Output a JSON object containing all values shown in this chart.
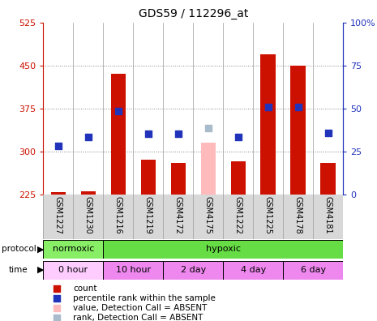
{
  "title": "GDS59 / 112296_at",
  "samples": [
    "GSM1227",
    "GSM1230",
    "GSM1216",
    "GSM1219",
    "GSM4172",
    "GSM4175",
    "GSM1222",
    "GSM1225",
    "GSM4178",
    "GSM4181"
  ],
  "count_values": [
    228,
    230,
    435,
    285,
    280,
    null,
    283,
    470,
    450,
    280
  ],
  "count_absent": [
    null,
    null,
    null,
    null,
    null,
    315,
    null,
    null,
    null,
    null
  ],
  "rank_values": [
    310,
    325,
    370,
    330,
    330,
    null,
    325,
    378,
    378,
    332
  ],
  "rank_absent": [
    null,
    null,
    null,
    null,
    null,
    340,
    null,
    null,
    null,
    null
  ],
  "ylim_left": [
    225,
    525
  ],
  "ylim_right": [
    0,
    100
  ],
  "left_ticks": [
    225,
    300,
    375,
    450,
    525
  ],
  "right_ticks": [
    0,
    25,
    50,
    75,
    100
  ],
  "right_tick_labels": [
    "0",
    "25",
    "50",
    "75",
    "100%"
  ],
  "bar_color": "#cc1100",
  "bar_absent_color": "#ffbbbb",
  "dot_color": "#2233bb",
  "dot_absent_color": "#aabbcc",
  "bar_width": 0.5,
  "dot_size": 35,
  "protocol_data": [
    {
      "label": "normoxic",
      "start": 0,
      "end": 2,
      "color": "#88ee66"
    },
    {
      "label": "hypoxic",
      "start": 2,
      "end": 10,
      "color": "#66dd44"
    }
  ],
  "time_data": [
    {
      "label": "0 hour",
      "start": 0,
      "end": 2,
      "color": "#ffccff"
    },
    {
      "label": "10 hour",
      "start": 2,
      "end": 4,
      "color": "#ee88ee"
    },
    {
      "label": "2 day",
      "start": 4,
      "end": 6,
      "color": "#ee88ee"
    },
    {
      "label": "4 day",
      "start": 6,
      "end": 8,
      "color": "#ee88ee"
    },
    {
      "label": "6 day",
      "start": 8,
      "end": 10,
      "color": "#ee88ee"
    }
  ],
  "left_axis_color": "#cc1100",
  "right_axis_color": "#2233bb",
  "legend_items": [
    {
      "color": "#cc1100",
      "label": "count"
    },
    {
      "color": "#2233bb",
      "label": "percentile rank within the sample"
    },
    {
      "color": "#ffbbbb",
      "label": "value, Detection Call = ABSENT"
    },
    {
      "color": "#aabbcc",
      "label": "rank, Detection Call = ABSENT"
    }
  ]
}
